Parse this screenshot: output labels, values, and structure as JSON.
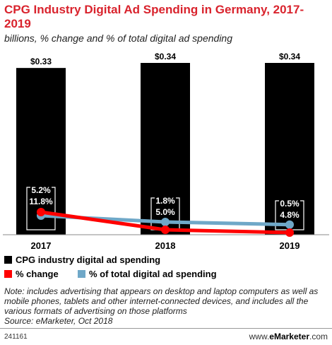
{
  "title": "CPG Industry Digital Ad Spending in Germany, 2017-2019",
  "subtitle": "billions, % change and % of total digital ad spending",
  "chart_data": {
    "type": "bar",
    "categories": [
      "2017",
      "2018",
      "2019"
    ],
    "series": [
      {
        "name": "CPG industry digital ad spending",
        "type": "bar",
        "values": [
          0.33,
          0.34,
          0.34
        ],
        "labels": [
          "$0.33",
          "$0.34",
          "$0.34"
        ],
        "color": "#000000"
      },
      {
        "name": "% change",
        "type": "line",
        "values": [
          11.8,
          5.0,
          4.8
        ],
        "labels": [
          "11.8%",
          "5.0%",
          "4.8%"
        ],
        "color": "#ff0000"
      },
      {
        "name": "% of total digital ad spending",
        "type": "line",
        "values": [
          5.2,
          1.8,
          0.5
        ],
        "labels": [
          "5.2%",
          "1.8%",
          "0.5%"
        ],
        "color": "#6fa8c8"
      }
    ],
    "grid": false,
    "legend": "bottom-left"
  },
  "legend": {
    "bar": "CPG industry digital ad spending",
    "change": "% change",
    "share": "% of total digital ad spending"
  },
  "note": "Note: includes advertising that appears on desktop and laptop computers as well as mobile phones, tablets and other internet-connected devices, and includes all the various formats of advertising on those platforms",
  "source": "Source: eMarketer, Oct 2018",
  "footer": {
    "id": "241161",
    "brand_prefix": "www.",
    "brand_name": "eMarketer",
    "brand_suffix": ".com"
  }
}
